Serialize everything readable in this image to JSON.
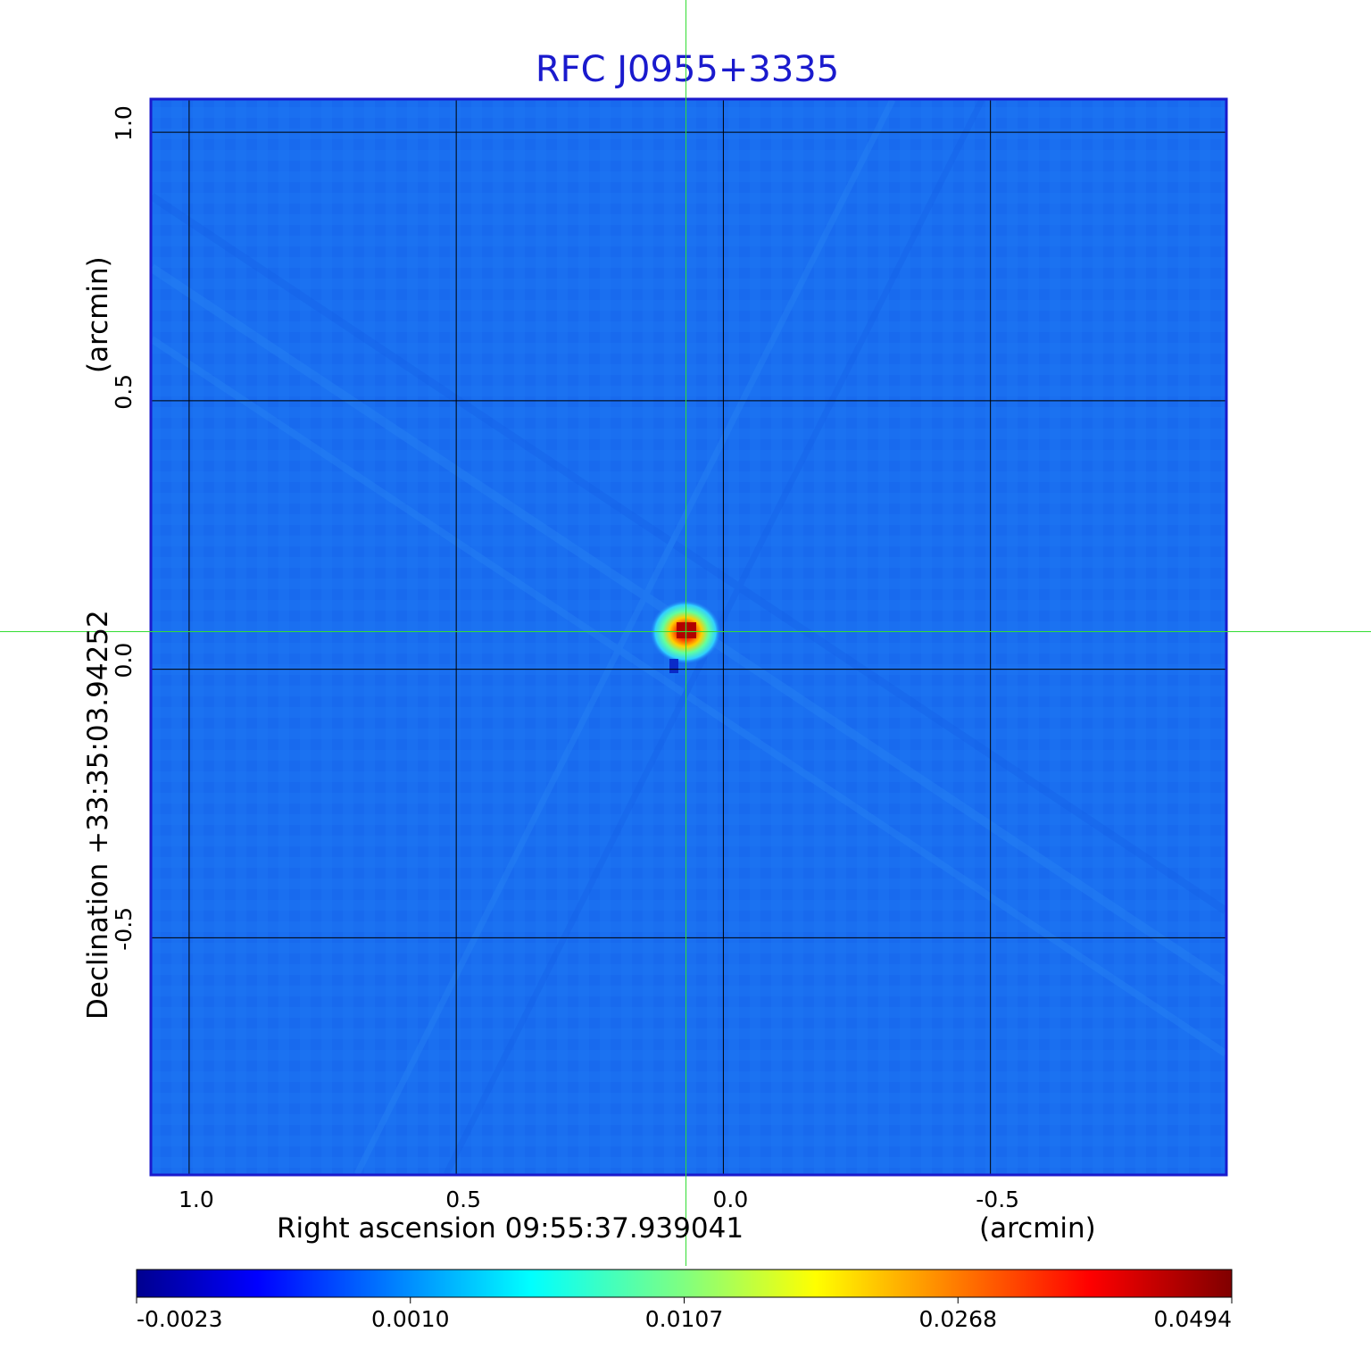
{
  "title": "RFC J0955+3335",
  "x_axis": {
    "label": "Right ascension  09:55:37.939041",
    "unit": "(arcmin)",
    "ticks": [
      "1.0",
      "0.5",
      "0.0",
      "-0.5"
    ],
    "tick_values": [
      1.0,
      0.5,
      0.0,
      -0.5
    ],
    "range": [
      1.07,
      -0.94
    ]
  },
  "y_axis": {
    "label": "Declination  +33:35:03.94252",
    "unit": "(arcmin)",
    "ticks": [
      "1.0",
      "0.5",
      "0.0",
      "-0.5"
    ],
    "tick_values": [
      1.0,
      0.5,
      0.0,
      -0.5
    ],
    "range": [
      -0.94,
      1.06
    ]
  },
  "colorbar": {
    "colormap": "jet",
    "ticks": [
      "-0.0023",
      "0.0010",
      "0.0107",
      "0.0268",
      "0.0494"
    ]
  },
  "source": {
    "x_arcmin": 0.07,
    "y_arcmin": 0.07
  },
  "colors": {
    "frame": "#1a1acd",
    "background_map": "#1a6ff0",
    "crosshair": "#33dd33",
    "grid": "#000000"
  }
}
